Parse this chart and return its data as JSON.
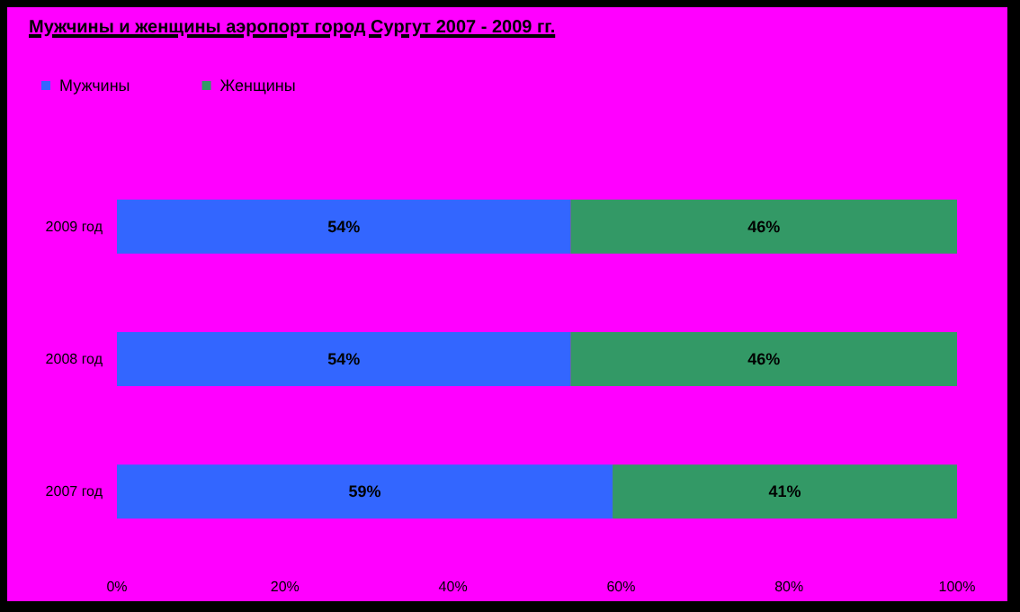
{
  "chart_data": {
    "type": "bar",
    "orientation": "horizontal",
    "stacked": true,
    "title": "Мужчины и женщины аэропорт город Сургут 2007 - 2009 гг.",
    "categories": [
      "2009 год",
      "2008 год",
      "2007 год"
    ],
    "series": [
      {
        "name": "Мужчины",
        "color": "#3366ff",
        "values": [
          54,
          54,
          59
        ],
        "value_labels": [
          "54%",
          "54%",
          "59%"
        ]
      },
      {
        "name": "Женщины",
        "color": "#339966",
        "values": [
          46,
          46,
          41
        ],
        "value_labels": [
          "46%",
          "46%",
          "41%"
        ]
      }
    ],
    "xlim": [
      0,
      100
    ],
    "xticks": [
      {
        "value": 0,
        "label": "0%"
      },
      {
        "value": 20,
        "label": "20%"
      },
      {
        "value": 40,
        "label": "40%"
      },
      {
        "value": 60,
        "label": "60%"
      },
      {
        "value": 80,
        "label": "80%"
      },
      {
        "value": 100,
        "label": "100%"
      }
    ],
    "grid": false,
    "legend": "top left"
  }
}
